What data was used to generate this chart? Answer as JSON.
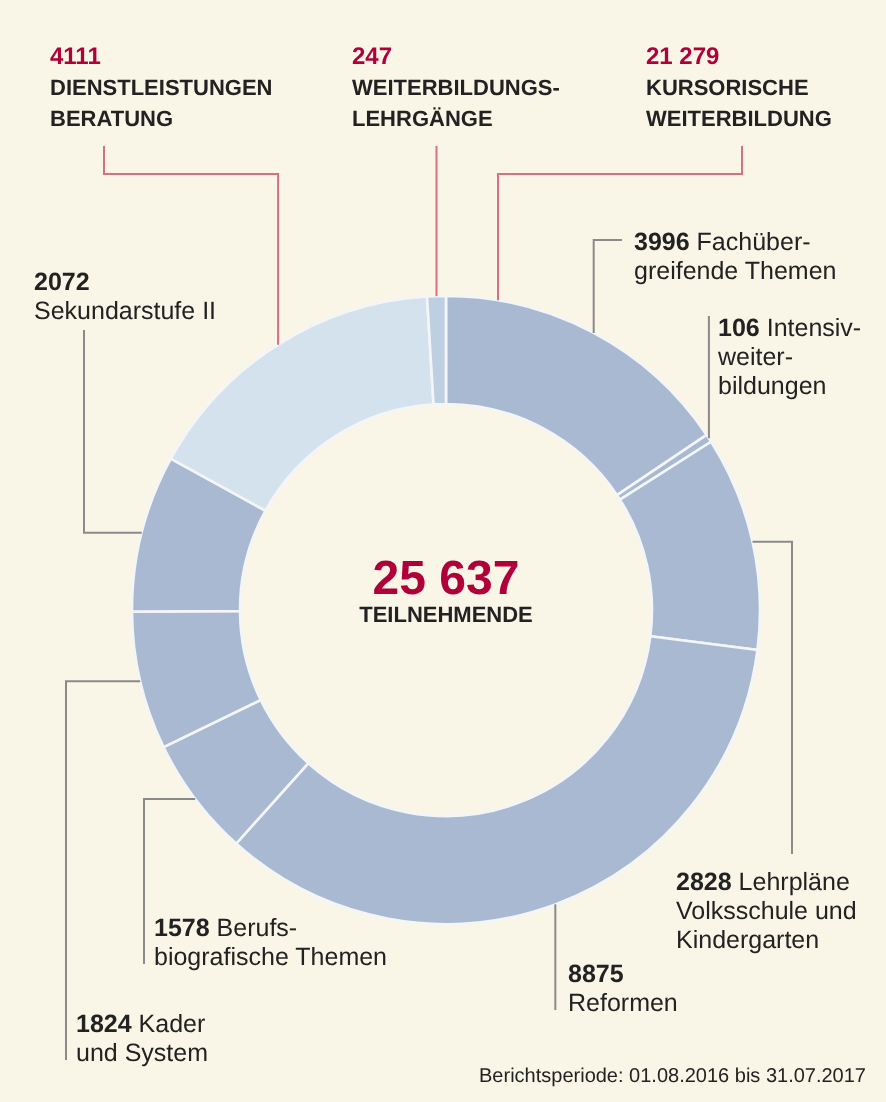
{
  "chart_data": {
    "type": "donut",
    "categories": [
      "Fachüber-\ngreifende Themen",
      "Intensiv-\nweiter-\nbildungen",
      "Lehrpläne\nVolksschule und\nKindergarten",
      "Reformen",
      "Berufs-\nbiografische Themen",
      "Kader\nund System",
      "Sekundarstufe II",
      "DIENSTLEISTUNGEN\nBERATUNG",
      "WEITERBILDUNGS-\nLEHRGÄNGE"
    ],
    "values": [
      3996,
      106,
      2828,
      8875,
      1578,
      1824,
      2072,
      4111,
      247
    ],
    "colors": [
      "#a8b9d1",
      "#a8b9d1",
      "#a8b9d1",
      "#a8b9d1",
      "#a8b9d1",
      "#a8b9d1",
      "#a8b9d1",
      "#d4e2ee",
      "#bdcfe1"
    ],
    "data_labels": true,
    "annotations": [
      "25 637",
      "TEILNEHMENDE",
      "21 279\nKURSORISCHE\nWEITERBILDUNG",
      "Berichtsperiode: 01.08.2016 bis 31.07.2017"
    ]
  }
}
